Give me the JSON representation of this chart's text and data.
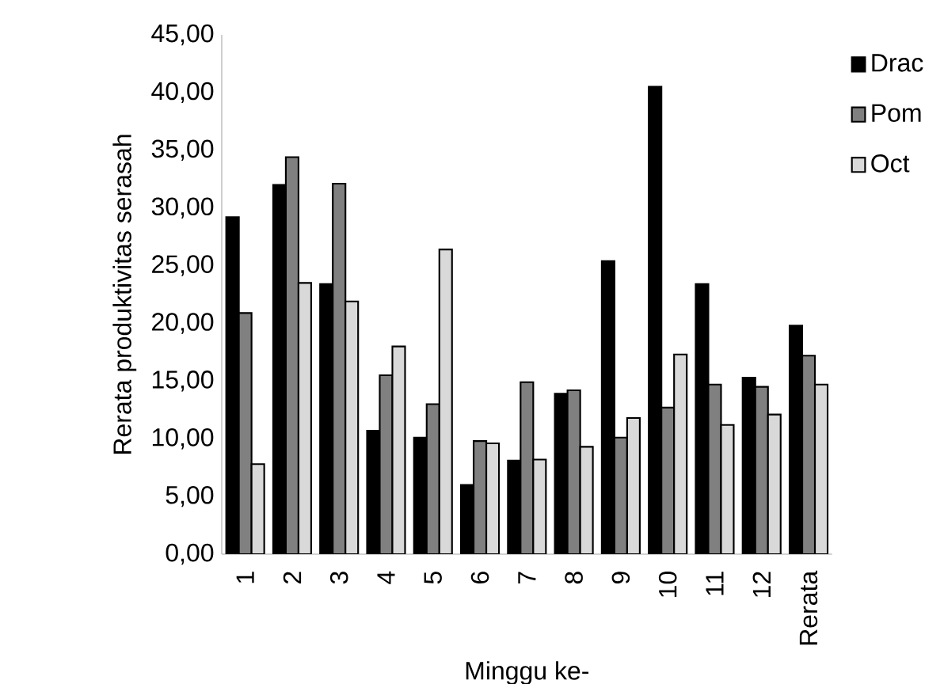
{
  "chart_data": {
    "type": "bar",
    "xlabel": "Minggu ke-",
    "ylabel": "Rerata produktivitas serasah",
    "categories": [
      "1",
      "2",
      "3",
      "4",
      "5",
      "6",
      "7",
      "8",
      "9",
      "10",
      "11",
      "12",
      "Rerata"
    ],
    "series": [
      {
        "name": "Drac",
        "color": "#000000",
        "values": [
          29.2,
          32.0,
          23.4,
          10.7,
          10.1,
          6.0,
          8.1,
          13.9,
          25.4,
          40.5,
          23.4,
          15.3,
          19.8
        ]
      },
      {
        "name": "Pom",
        "color": "#808080",
        "values": [
          20.9,
          34.4,
          32.1,
          15.5,
          13.0,
          9.8,
          14.9,
          14.2,
          10.1,
          12.7,
          14.7,
          14.5,
          17.2
        ]
      },
      {
        "name": "Oct",
        "color": "#d9d9d9",
        "values": [
          7.8,
          23.5,
          21.9,
          18.0,
          26.4,
          9.6,
          8.2,
          9.3,
          11.8,
          17.3,
          11.2,
          12.1,
          14.7
        ]
      }
    ],
    "ylim": [
      0,
      45
    ],
    "yticks": [
      {
        "value": 0,
        "label": "0,00"
      },
      {
        "value": 5,
        "label": "5,00"
      },
      {
        "value": 10,
        "label": "10,00"
      },
      {
        "value": 15,
        "label": "15,00"
      },
      {
        "value": 20,
        "label": "20,00"
      },
      {
        "value": 25,
        "label": "25,00"
      },
      {
        "value": 30,
        "label": "30,00"
      },
      {
        "value": 35,
        "label": "35,00"
      },
      {
        "value": 40,
        "label": "40,00"
      },
      {
        "value": 45,
        "label": "45,00"
      }
    ],
    "legend": "top right",
    "grid": false
  }
}
